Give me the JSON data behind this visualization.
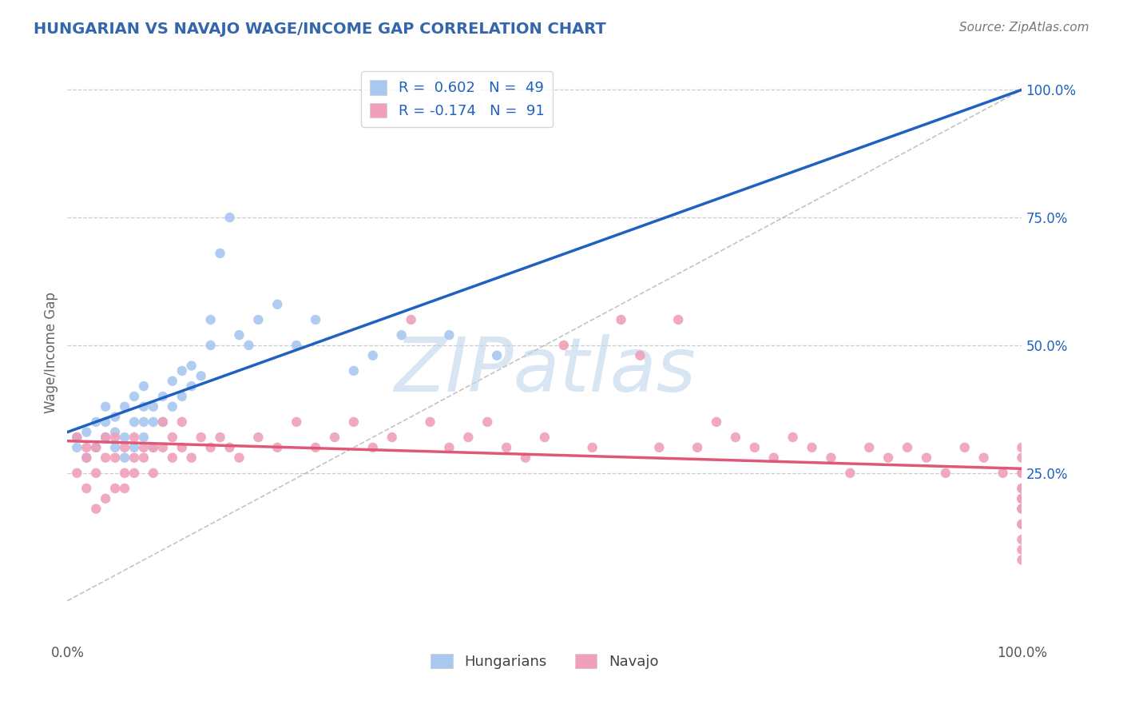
{
  "title": "HUNGARIAN VS NAVAJO WAGE/INCOME GAP CORRELATION CHART",
  "source_text": "Source: ZipAtlas.com",
  "ylabel": "Wage/Income Gap",
  "watermark": "ZIPatlas",
  "background_color": "#ffffff",
  "plot_bg_color": "#ffffff",
  "grid_color": "#cccccc",
  "xmin": 0.0,
  "xmax": 1.0,
  "ymin": -0.08,
  "ymax": 1.05,
  "hungarian_color": "#a8c8f0",
  "navajo_color": "#f0a0b8",
  "hungarian_line_color": "#2060c0",
  "navajo_line_color": "#e05878",
  "ref_line_color": "#aaaaaa",
  "hungarian_R": 0.602,
  "hungarian_N": 49,
  "navajo_R": -0.174,
  "navajo_N": 91,
  "legend_label_hungarian": "Hungarians",
  "legend_label_navajo": "Navajo",
  "ytick_positions": [
    0.25,
    0.5,
    0.75,
    1.0
  ],
  "ytick_labels": [
    "25.0%",
    "50.0%",
    "75.0%",
    "100.0%"
  ],
  "xtick_positions": [
    0.0,
    1.0
  ],
  "xtick_labels": [
    "0.0%",
    "100.0%"
  ],
  "hungarian_x": [
    0.01,
    0.01,
    0.02,
    0.02,
    0.03,
    0.03,
    0.04,
    0.04,
    0.04,
    0.05,
    0.05,
    0.05,
    0.06,
    0.06,
    0.06,
    0.07,
    0.07,
    0.07,
    0.08,
    0.08,
    0.08,
    0.08,
    0.09,
    0.09,
    0.09,
    0.1,
    0.1,
    0.11,
    0.11,
    0.12,
    0.12,
    0.13,
    0.13,
    0.14,
    0.15,
    0.15,
    0.16,
    0.17,
    0.18,
    0.19,
    0.2,
    0.22,
    0.24,
    0.26,
    0.3,
    0.32,
    0.35,
    0.4,
    0.45
  ],
  "hungarian_y": [
    0.3,
    0.32,
    0.28,
    0.33,
    0.3,
    0.35,
    0.32,
    0.35,
    0.38,
    0.3,
    0.33,
    0.36,
    0.28,
    0.32,
    0.38,
    0.3,
    0.35,
    0.4,
    0.32,
    0.35,
    0.38,
    0.42,
    0.3,
    0.35,
    0.38,
    0.35,
    0.4,
    0.38,
    0.43,
    0.4,
    0.45,
    0.42,
    0.46,
    0.44,
    0.5,
    0.55,
    0.68,
    0.75,
    0.52,
    0.5,
    0.55,
    0.58,
    0.5,
    0.55,
    0.45,
    0.48,
    0.52,
    0.52,
    0.48
  ],
  "navajo_x": [
    0.01,
    0.01,
    0.02,
    0.02,
    0.02,
    0.03,
    0.03,
    0.03,
    0.04,
    0.04,
    0.04,
    0.05,
    0.05,
    0.05,
    0.06,
    0.06,
    0.06,
    0.07,
    0.07,
    0.07,
    0.08,
    0.08,
    0.09,
    0.09,
    0.1,
    0.1,
    0.11,
    0.11,
    0.12,
    0.12,
    0.13,
    0.14,
    0.15,
    0.16,
    0.17,
    0.18,
    0.2,
    0.22,
    0.24,
    0.26,
    0.28,
    0.3,
    0.32,
    0.34,
    0.36,
    0.38,
    0.4,
    0.42,
    0.44,
    0.46,
    0.48,
    0.5,
    0.52,
    0.55,
    0.58,
    0.6,
    0.62,
    0.64,
    0.66,
    0.68,
    0.7,
    0.72,
    0.74,
    0.76,
    0.78,
    0.8,
    0.82,
    0.84,
    0.86,
    0.88,
    0.9,
    0.92,
    0.94,
    0.96,
    0.98,
    1.0,
    1.0,
    1.0,
    1.0,
    1.0,
    1.0,
    1.0,
    1.0,
    1.0,
    1.0,
    1.0,
    1.0,
    1.0,
    1.0,
    1.0,
    1.0
  ],
  "navajo_y": [
    0.32,
    0.25,
    0.28,
    0.22,
    0.3,
    0.18,
    0.25,
    0.3,
    0.2,
    0.28,
    0.32,
    0.22,
    0.28,
    0.32,
    0.25,
    0.3,
    0.22,
    0.28,
    0.32,
    0.25,
    0.3,
    0.28,
    0.3,
    0.25,
    0.3,
    0.35,
    0.28,
    0.32,
    0.3,
    0.35,
    0.28,
    0.32,
    0.3,
    0.32,
    0.3,
    0.28,
    0.32,
    0.3,
    0.35,
    0.3,
    0.32,
    0.35,
    0.3,
    0.32,
    0.55,
    0.35,
    0.3,
    0.32,
    0.35,
    0.3,
    0.28,
    0.32,
    0.5,
    0.3,
    0.55,
    0.48,
    0.3,
    0.55,
    0.3,
    0.35,
    0.32,
    0.3,
    0.28,
    0.32,
    0.3,
    0.28,
    0.25,
    0.3,
    0.28,
    0.3,
    0.28,
    0.25,
    0.3,
    0.28,
    0.25,
    0.3,
    0.28,
    0.22,
    0.25,
    0.2,
    0.25,
    0.2,
    0.18,
    0.22,
    0.15,
    0.2,
    0.12,
    0.18,
    0.15,
    0.1,
    0.08
  ]
}
